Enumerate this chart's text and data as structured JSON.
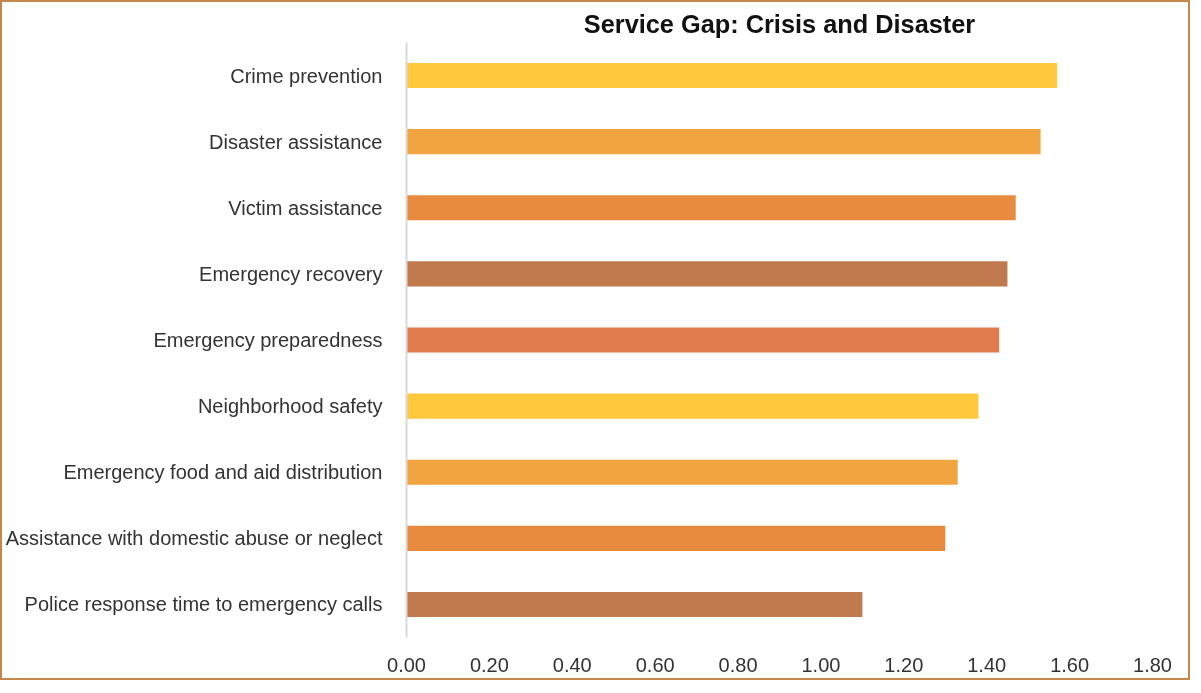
{
  "chart_data": {
    "type": "bar",
    "orientation": "horizontal",
    "title": "Service Gap: Crisis and Disaster",
    "categories": [
      "Crime prevention",
      "Disaster assistance",
      "Victim assistance",
      "Emergency recovery",
      "Emergency preparedness",
      "Neighborhood safety",
      "Emergency food and aid distribution",
      "Assistance with domestic abuse or neglect",
      "Police response time to emergency calls"
    ],
    "values": [
      1.57,
      1.53,
      1.47,
      1.45,
      1.43,
      1.38,
      1.33,
      1.3,
      1.1
    ],
    "colors": [
      "#ffc83d",
      "#f0a540",
      "#e98b3f",
      "#c07a4e",
      "#e07c4b",
      "#ffc83d",
      "#f0a540",
      "#e98b3f",
      "#c07a4e"
    ],
    "xlim": [
      0,
      1.8
    ],
    "xticks": [
      {
        "value": 0,
        "label": "0.00"
      },
      {
        "value": 0.2,
        "label": "0.20"
      },
      {
        "value": 0.4,
        "label": "0.40"
      },
      {
        "value": 0.6,
        "label": "0.60"
      },
      {
        "value": 0.8,
        "label": "0.80"
      },
      {
        "value": 1.0,
        "label": "1.00"
      },
      {
        "value": 1.2,
        "label": "1.20"
      },
      {
        "value": 1.4,
        "label": "1.40"
      },
      {
        "value": 1.6,
        "label": "1.60"
      },
      {
        "value": 1.8,
        "label": "1.80"
      }
    ],
    "grid": false
  }
}
